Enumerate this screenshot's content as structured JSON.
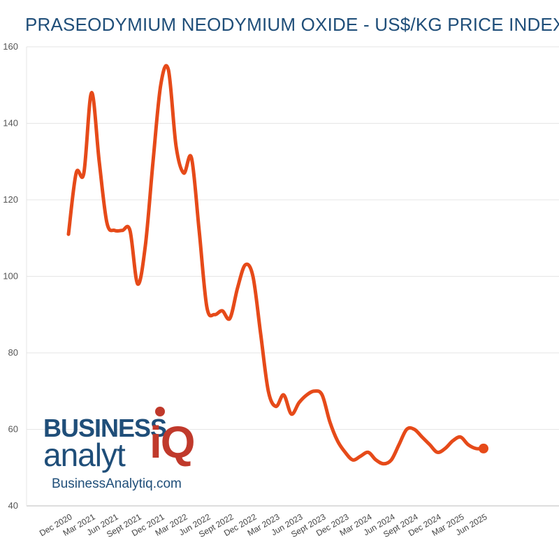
{
  "chart_data": {
    "type": "line",
    "title": "PRASEODYMIUM NEODYMIUM OXIDE - US$/KG PRICE INDEX",
    "xlabel": "",
    "ylabel": "",
    "ylim": [
      40,
      160
    ],
    "yticks": [
      40,
      60,
      80,
      100,
      120,
      140,
      160
    ],
    "grid": true,
    "x_tick_labels": [
      "Dec 2020",
      "Mar 2021",
      "Jun 2021",
      "Sept 2021",
      "Dec 2021",
      "Mar 2022",
      "Jun 2022",
      "Sept 2022",
      "Dec 2022",
      "Mar 2023",
      "Jun 2023",
      "Sept 2023",
      "Dec 2023",
      "Mar 2024",
      "Jun 2024",
      "Sept 2024",
      "Dec 2024",
      "Mar 2025",
      "Jun 2025"
    ],
    "x": [
      "Dec 2020",
      "Jan 2021",
      "Feb 2021",
      "Mar 2021",
      "Apr 2021",
      "May 2021",
      "Jun 2021",
      "Jul 2021",
      "Aug 2021",
      "Sept 2021",
      "Oct 2021",
      "Nov 2021",
      "Dec 2021",
      "Jan 2022",
      "Feb 2022",
      "Mar 2022",
      "Apr 2022",
      "May 2022",
      "Jun 2022",
      "Jul 2022",
      "Aug 2022",
      "Sept 2022",
      "Oct 2022",
      "Nov 2022",
      "Dec 2022",
      "Jan 2023",
      "Feb 2023",
      "Mar 2023",
      "Apr 2023",
      "May 2023",
      "Jun 2023",
      "Jul 2023",
      "Aug 2023",
      "Sept 2023",
      "Oct 2023",
      "Nov 2023",
      "Dec 2023",
      "Jan 2024",
      "Feb 2024",
      "Mar 2024",
      "Apr 2024",
      "May 2024",
      "Jun 2024",
      "Jul 2024",
      "Aug 2024",
      "Sept 2024",
      "Oct 2024",
      "Nov 2024",
      "Dec 2024",
      "Jan 2025",
      "Feb 2025",
      "Mar 2025",
      "Apr 2025",
      "May 2025",
      "Jun 2025"
    ],
    "series": [
      {
        "values": [
          111,
          127,
          127,
          148,
          130,
          114,
          112,
          112,
          112,
          98,
          108,
          130,
          150,
          154,
          134,
          127,
          131,
          112,
          92,
          90,
          91,
          89,
          97,
          103,
          100,
          85,
          70,
          66,
          69,
          64,
          67,
          69,
          70,
          69,
          62,
          57,
          54,
          52,
          53,
          54,
          52,
          51,
          52,
          56,
          60,
          60,
          58,
          56,
          54,
          55,
          57,
          58,
          56,
          55,
          55
        ],
        "color": "#e64a19"
      }
    ]
  },
  "logo": {
    "line1": "BUSINESS",
    "line2": "analyt",
    "iq": "iQ",
    "url": "BusinessAnalytiq.com"
  }
}
